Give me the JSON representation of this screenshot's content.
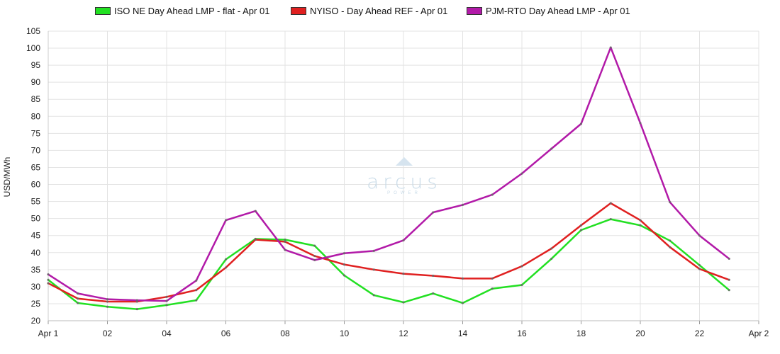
{
  "chart_data": {
    "type": "line",
    "title": "",
    "xlabel": "",
    "ylabel": "USD/MWh",
    "ylim": [
      20,
      105
    ],
    "y_ticks": [
      20,
      25,
      30,
      35,
      40,
      45,
      50,
      55,
      60,
      65,
      70,
      75,
      80,
      85,
      90,
      95,
      100,
      105
    ],
    "x_range_hours": [
      0,
      24
    ],
    "x_ticks": [
      {
        "hour": 0,
        "label": "Apr 1"
      },
      {
        "hour": 2,
        "label": "02"
      },
      {
        "hour": 4,
        "label": "04"
      },
      {
        "hour": 6,
        "label": "06"
      },
      {
        "hour": 8,
        "label": "08"
      },
      {
        "hour": 10,
        "label": "10"
      },
      {
        "hour": 12,
        "label": "12"
      },
      {
        "hour": 14,
        "label": "14"
      },
      {
        "hour": 16,
        "label": "16"
      },
      {
        "hour": 18,
        "label": "18"
      },
      {
        "hour": 20,
        "label": "20"
      },
      {
        "hour": 22,
        "label": "22"
      },
      {
        "hour": 24,
        "label": "Apr 2"
      }
    ],
    "x": [
      0,
      1,
      2,
      3,
      4,
      5,
      6,
      7,
      8,
      9,
      10,
      11,
      12,
      13,
      14,
      15,
      16,
      17,
      18,
      19,
      20,
      21,
      22,
      23
    ],
    "grid": true,
    "legend_position": "top",
    "series": [
      {
        "name": "ISO NE Day Ahead LMP - flat - Apr 01",
        "color": "#22e022",
        "values": [
          32.0,
          25.2,
          24.1,
          23.4,
          24.6,
          26.0,
          38.0,
          44.0,
          43.8,
          42.0,
          33.3,
          27.5,
          25.4,
          28.0,
          25.2,
          29.4,
          30.5,
          38.2,
          46.6,
          49.8,
          48.0,
          43.5,
          36.3,
          29.0
        ]
      },
      {
        "name": "NYISO - Day Ahead REF - Apr 01",
        "color": "#e02020",
        "values": [
          31.0,
          26.5,
          25.6,
          25.6,
          27.0,
          29.0,
          35.6,
          43.8,
          43.2,
          39.0,
          36.5,
          35.0,
          33.8,
          33.2,
          32.4,
          32.4,
          36.0,
          41.2,
          48.0,
          54.5,
          49.5,
          41.6,
          35.2,
          32.0
        ]
      },
      {
        "name": "PJM-RTO Day Ahead LMP - Apr 01",
        "color": "#b21aa8",
        "values": [
          33.6,
          28.0,
          26.3,
          26.0,
          25.8,
          31.8,
          49.5,
          52.2,
          40.8,
          37.8,
          39.8,
          40.5,
          43.6,
          51.8,
          54.0,
          57.0,
          63.2,
          70.5,
          77.8,
          100.2,
          78.0,
          54.8,
          45.0,
          38.2
        ]
      }
    ]
  },
  "watermark": {
    "brand": "arcus",
    "sub": "POWER"
  }
}
